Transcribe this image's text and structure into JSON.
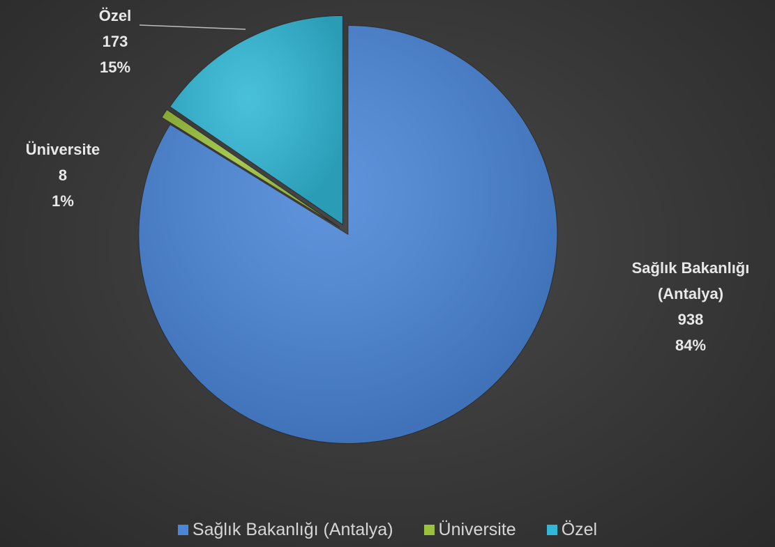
{
  "chart_data": {
    "type": "pie",
    "categories": [
      "Sağlık Bakanlığı (Antalya)",
      "Üniversite",
      "Özel"
    ],
    "values": [
      938,
      8,
      173
    ],
    "percent_labels": [
      "84%",
      "1%",
      "15%"
    ],
    "colors": [
      "#4a86d8",
      "#9bc23c",
      "#31b8d6"
    ],
    "legend": "bottom"
  }
}
